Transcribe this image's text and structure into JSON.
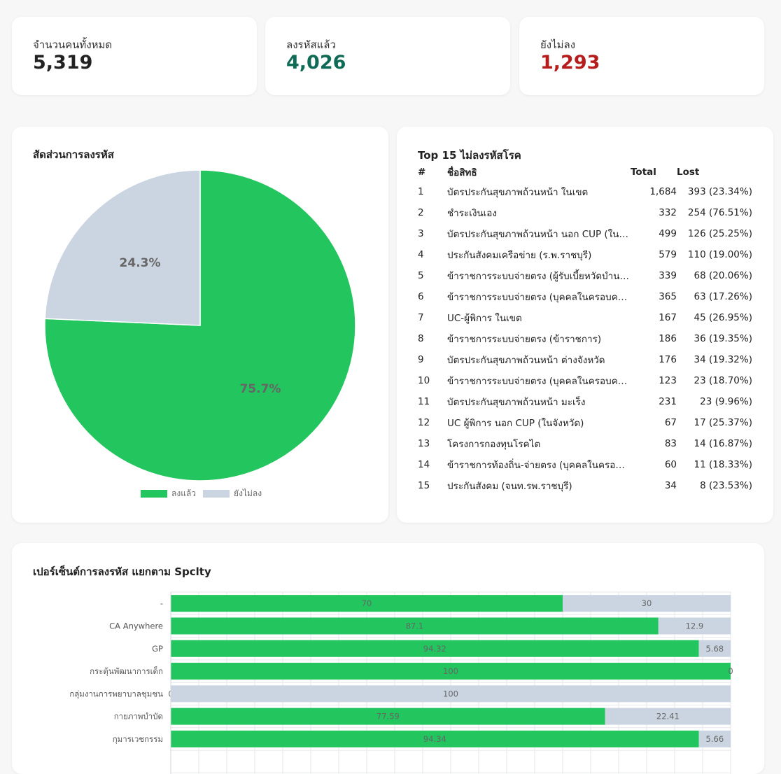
{
  "kpis": [
    {
      "label": "จำนวนคนทั้งหมด",
      "value": "5,319",
      "color": "#222222"
    },
    {
      "label": "ลงรหัสแล้ว",
      "value": "4,026",
      "color": "#0f6b55"
    },
    {
      "label": "ยังไม่ลง",
      "value": "1,293",
      "color": "#b71c1c"
    }
  ],
  "pie": {
    "title": "สัดส่วนการลงรหัส",
    "legend": [
      "ลงแล้ว",
      "ยังไม่ลง"
    ]
  },
  "top15": {
    "title": "Top 15 ไม่ลงรหัสโรค",
    "headers": {
      "idx": "#",
      "name": "ชื่อสิทธิ",
      "total": "Total",
      "lost": "Lost"
    },
    "rows": [
      {
        "idx": "1",
        "name": "บัตรประกันสุขภาพถ้วนหน้า ในเขต",
        "total": "1,684",
        "lost": "393 (23.34%)"
      },
      {
        "idx": "2",
        "name": "ชำระเงินเอง",
        "total": "332",
        "lost": "254 (76.51%)"
      },
      {
        "idx": "3",
        "name": "บัตรประกันสุขภาพถ้วนหน้า นอก CUP (ในจังหวัด)",
        "total": "499",
        "lost": "126 (25.25%)"
      },
      {
        "idx": "4",
        "name": "ประกันสังคมเครือข่าย (ร.พ.ราชบุรี)",
        "total": "579",
        "lost": "110 (19.00%)"
      },
      {
        "idx": "5",
        "name": "ข้าราชการระบบจ่ายตรง (ผู้รับเบี้ยหวัดบำนาญ)",
        "total": "339",
        "lost": "68 (20.06%)"
      },
      {
        "idx": "6",
        "name": "ข้าราชการระบบจ่ายตรง (บุคคลในครอบครัว)",
        "total": "365",
        "lost": "63 (17.26%)"
      },
      {
        "idx": "7",
        "name": "UC-ผู้พิการ ในเขต",
        "total": "167",
        "lost": "45 (26.95%)"
      },
      {
        "idx": "8",
        "name": "ข้าราชการระบบจ่ายตรง (ข้าราชการ)",
        "total": "186",
        "lost": "36 (19.35%)"
      },
      {
        "idx": "9",
        "name": "บัตรประกันสุขภาพถ้วนหน้า ต่างจังหวัด",
        "total": "176",
        "lost": "34 (19.32%)"
      },
      {
        "idx": "10",
        "name": "ข้าราชการระบบจ่ายตรง (บุคคลในครอบครัว)",
        "total": "123",
        "lost": "23 (18.70%)"
      },
      {
        "idx": "11",
        "name": "บัตรประกันสุขภาพถ้วนหน้า มะเร็ง",
        "total": "231",
        "lost": "23 (9.96%)"
      },
      {
        "idx": "12",
        "name": "UC ผู้พิการ นอก CUP (ในจังหวัด)",
        "total": "67",
        "lost": "17 (25.37%)"
      },
      {
        "idx": "13",
        "name": "โครงการกองทุนโรคไต",
        "total": "83",
        "lost": "14 (16.87%)"
      },
      {
        "idx": "14",
        "name": "ข้าราชการท้องถิ่น-จ่ายตรง (บุคคลในครอบครัว)",
        "total": "60",
        "lost": "11 (18.33%)"
      },
      {
        "idx": "15",
        "name": "ประกันสังคม (จนท.รพ.ราชบุรี)",
        "total": "34",
        "lost": "8 (23.53%)"
      }
    ]
  },
  "bar": {
    "title": "เปอร์เซ็นต์การลงรหัส แยกตาม Spclty"
  },
  "chart_data": [
    {
      "type": "pie",
      "title": "สัดส่วนการลงรหัส",
      "categories": [
        "ลงแล้ว",
        "ยังไม่ลง"
      ],
      "values": [
        75.7,
        24.3
      ],
      "labels": [
        "75.7%",
        "24.3%"
      ],
      "colors": [
        "#22c55e",
        "#cbd5e1"
      ],
      "legend": "bottom"
    },
    {
      "type": "bar",
      "orientation": "horizontal",
      "stacked": true,
      "title": "เปอร์เซ็นต์การลงรหัส แยกตาม Spclty",
      "categories": [
        "-",
        "CA Anywhere",
        "GP",
        "กระตุ้นพัฒนาการเด็ก",
        "กลุ่มงานการพยาบาลชุมชน",
        "กายภาพบำบัด",
        "กุมารเวชกรรม"
      ],
      "series": [
        {
          "values": [
            70,
            87.1,
            94.32,
            100,
            0,
            77.59,
            94.34
          ],
          "color": "#22c55e"
        },
        {
          "values": [
            30,
            12.9,
            5.68,
            0,
            100,
            22.41,
            5.66
          ],
          "color": "#cbd5e1"
        }
      ],
      "xlim": [
        0,
        100
      ],
      "grid": true
    }
  ]
}
